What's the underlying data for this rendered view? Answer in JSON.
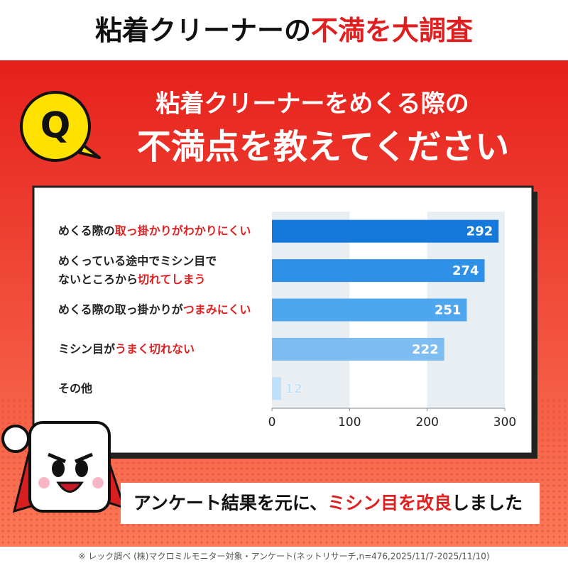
{
  "header": {
    "title": [
      {
        "text": "粘着クリーナーの"
      },
      {
        "text": "不満を大調査",
        "em": true
      }
    ]
  },
  "question": {
    "badge": "Q",
    "lines": [
      "粘着クリーナーをめくる際の",
      "不満点を教えてください"
    ]
  },
  "chart_data": {
    "type": "bar",
    "orientation": "horizontal",
    "categories": [
      [
        [
          {
            "text": "めくる際の"
          },
          {
            "text": "取っ掛かりがわかりにくい",
            "em": true
          }
        ]
      ],
      [
        [
          {
            "text": "めくっている途中でミシン目で"
          }
        ],
        [
          {
            "text": "ないところから"
          },
          {
            "text": "切れてしまう",
            "em": true
          }
        ]
      ],
      [
        [
          {
            "text": "めくる際の取っ掛かりが"
          },
          {
            "text": "つまみにくい",
            "em": true
          }
        ]
      ],
      [
        [
          {
            "text": "ミシン目が"
          },
          {
            "text": "うまく切れない",
            "em": true
          }
        ]
      ],
      [
        [
          {
            "text": "その他"
          }
        ]
      ]
    ],
    "values": [
      292,
      274,
      251,
      222,
      12
    ],
    "colors": [
      "#1579db",
      "#2e90e6",
      "#4ea6ee",
      "#7dbdf2",
      "#bfe0fa"
    ],
    "xlim": [
      0,
      300
    ],
    "xticks": [
      0,
      100,
      200,
      300
    ],
    "grid": "bands"
  },
  "banner": [
    {
      "text": "アンケート結果を元に、"
    },
    {
      "text": "ミシン目を改良",
      "em": true
    },
    {
      "text": "しました"
    }
  ],
  "footnote": "※ レック調べ (株)マクロミルモニター対象・アンケート(ネットリサーチ,n=476,2025/11/7-2025/11/10)"
}
